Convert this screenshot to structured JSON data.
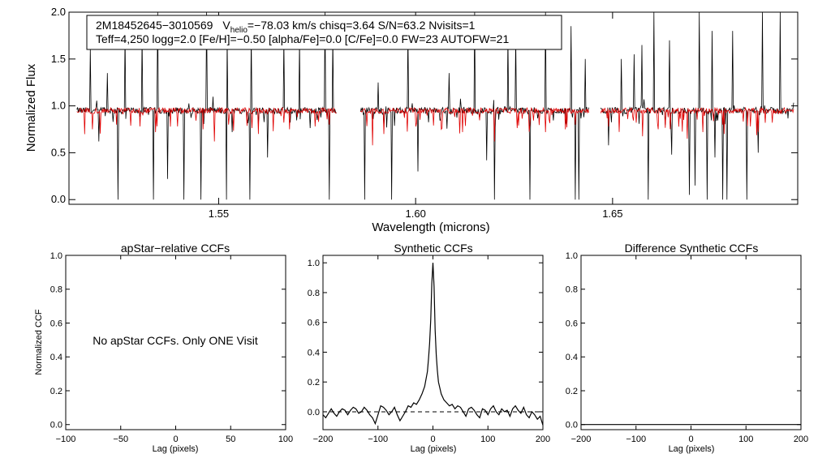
{
  "chart_data": [
    {
      "type": "line",
      "xlabel": "Wavelength (microns)",
      "ylabel": "Normalized Flux",
      "xlim": [
        1.512,
        1.697
      ],
      "ylim": [
        -0.05,
        2.0
      ],
      "xticks": [
        "1.55",
        "1.60",
        "1.65"
      ],
      "xtick_values": [
        1.55,
        1.6,
        1.65
      ],
      "yticks": [
        "0.0",
        "0.5",
        "1.0",
        "1.5",
        "2.0"
      ],
      "ytick_values": [
        0.0,
        0.5,
        1.0,
        1.5,
        2.0
      ],
      "info_line1_star": "2M18452645−3010569",
      "info_line1_v": "V",
      "info_line1_sub": "helio",
      "info_line1_rest": "=−78.03 km/s  chisq=3.64  S/N=63.2  Nvisits=1",
      "info_line2": "Teff=4,250 logg=2.0 [Fe/H]=−0.50 [alpha/Fe]=0.0 [C/Fe]=0.0 FW=23 AUTOFW=21",
      "detectors": [
        [
          1.514,
          1.58
        ],
        [
          1.586,
          1.644
        ],
        [
          1.647,
          1.696
        ]
      ],
      "series": [
        {
          "color": "#000000",
          "level": 0.95,
          "noise": 0.035,
          "spikes_up": [
            [
              1.5175,
              1.62
            ],
            [
              1.5218,
              1.35
            ],
            [
              1.5262,
              1.78
            ],
            [
              1.5305,
              1.75
            ],
            [
              1.5345,
              2.0
            ],
            [
              1.5412,
              1.75
            ],
            [
              1.547,
              2.0
            ],
            [
              1.5522,
              1.75
            ],
            [
              1.5582,
              1.75
            ],
            [
              1.5625,
              1.75
            ],
            [
              1.5665,
              1.72
            ],
            [
              1.5705,
              1.7
            ],
            [
              1.577,
              2.0
            ],
            [
              1.579,
              1.75
            ],
            [
              1.5905,
              1.25
            ],
            [
              1.598,
              1.8
            ],
            [
              1.6005,
              1.65
            ],
            [
              1.6085,
              1.35
            ],
            [
              1.615,
              2.0
            ],
            [
              1.6235,
              1.75
            ],
            [
              1.6255,
              1.75
            ],
            [
              1.633,
              2.0
            ],
            [
              1.6395,
              1.85
            ],
            [
              1.643,
              1.5
            ],
            [
              1.6522,
              1.5
            ],
            [
              1.6555,
              1.55
            ],
            [
              1.6575,
              1.65
            ],
            [
              1.6605,
              2.0
            ],
            [
              1.6645,
              1.7
            ],
            [
              1.672,
              2.0
            ],
            [
              1.6752,
              1.8
            ],
            [
              1.6805,
              1.8
            ],
            [
              1.684,
              1.75
            ],
            [
              1.688,
              2.0
            ],
            [
              1.6925,
              2.0
            ]
          ],
          "spikes_down": [
            [
              1.5195,
              0.62
            ],
            [
              1.5245,
              0.0
            ],
            [
              1.5335,
              0.0
            ],
            [
              1.537,
              0.22
            ],
            [
              1.5412,
              0.0
            ],
            [
              1.5455,
              0.0
            ],
            [
              1.552,
              0.0
            ],
            [
              1.5535,
              0.72
            ],
            [
              1.558,
              0.0
            ],
            [
              1.5625,
              0.45
            ],
            [
              1.578,
              0.0
            ],
            [
              1.587,
              0.0
            ],
            [
              1.594,
              0.0
            ],
            [
              1.6005,
              0.3
            ],
            [
              1.618,
              0.42
            ],
            [
              1.62,
              0.0
            ],
            [
              1.629,
              0.0
            ],
            [
              1.6405,
              0.0
            ],
            [
              1.6415,
              0.0
            ],
            [
              1.649,
              0.58
            ],
            [
              1.659,
              0.0
            ],
            [
              1.665,
              0.48
            ],
            [
              1.6695,
              0.05
            ],
            [
              1.671,
              0.15
            ],
            [
              1.674,
              0.0
            ],
            [
              1.676,
              0.45
            ],
            [
              1.678,
              0.0
            ],
            [
              1.679,
              0.0
            ],
            [
              1.684,
              0.0
            ],
            [
              1.687,
              0.5
            ]
          ]
        },
        {
          "color": "#e00000",
          "level": 0.95,
          "noise": 0.03,
          "spikes_up": [],
          "spikes_down": [
            [
              1.518,
              0.75
            ],
            [
              1.524,
              0.8
            ],
            [
              1.53,
              0.78
            ],
            [
              1.534,
              0.72
            ],
            [
              1.5395,
              0.78
            ],
            [
              1.546,
              0.75
            ],
            [
              1.549,
              0.62
            ],
            [
              1.5525,
              0.8
            ],
            [
              1.56,
              0.7
            ],
            [
              1.568,
              0.75
            ],
            [
              1.5745,
              0.78
            ],
            [
              1.578,
              0.8
            ],
            [
              1.589,
              0.58
            ],
            [
              1.592,
              0.7
            ],
            [
              1.6,
              0.78
            ],
            [
              1.6065,
              0.75
            ],
            [
              1.612,
              0.72
            ],
            [
              1.62,
              0.62
            ],
            [
              1.629,
              0.8
            ],
            [
              1.633,
              0.72
            ],
            [
              1.638,
              0.75
            ],
            [
              1.649,
              0.78
            ],
            [
              1.656,
              0.82
            ],
            [
              1.6615,
              0.75
            ],
            [
              1.669,
              0.65
            ],
            [
              1.673,
              0.72
            ],
            [
              1.678,
              0.8
            ],
            [
              1.685,
              0.78
            ],
            [
              1.6905,
              0.82
            ]
          ]
        }
      ]
    },
    {
      "type": "line",
      "title": "apStar−relative CCFs",
      "xlabel": "Lag (pixels)",
      "ylabel": "Normalized CCF",
      "xlim": [
        -100,
        100
      ],
      "ylim": [
        -0.03,
        1.0
      ],
      "xticks": [
        "−100",
        "−50",
        "0",
        "50",
        "100"
      ],
      "xtick_values": [
        -100,
        -50,
        0,
        50,
        100
      ],
      "yticks": [
        "0.0",
        "0.2",
        "0.4",
        "0.6",
        "0.8",
        "1.0"
      ],
      "ytick_values": [
        0.0,
        0.2,
        0.4,
        0.6,
        0.8,
        1.0
      ],
      "note": "No apStar CCFs.  Only ONE Visit",
      "series": []
    },
    {
      "type": "line",
      "title": "Synthetic CCFs",
      "xlabel": "Lag (pixels)",
      "xlim": [
        -200,
        200
      ],
      "ylim": [
        -0.12,
        1.05
      ],
      "xticks": [
        "−200",
        "−100",
        "0",
        "100",
        "200"
      ],
      "xtick_values": [
        -200,
        -100,
        0,
        100,
        200
      ],
      "yticks": [
        "0.0",
        "0.2",
        "0.4",
        "0.6",
        "0.8",
        "1.0"
      ],
      "ytick_values": [
        0.0,
        0.2,
        0.4,
        0.6,
        0.8,
        1.0
      ],
      "zero_line": true,
      "series": [
        {
          "color": "#000000",
          "x": [
            -200,
            -195,
            -190,
            -185,
            -180,
            -175,
            -170,
            -165,
            -160,
            -155,
            -150,
            -145,
            -140,
            -135,
            -130,
            -125,
            -120,
            -115,
            -110,
            -105,
            -100,
            -95,
            -90,
            -85,
            -80,
            -75,
            -70,
            -65,
            -60,
            -55,
            -50,
            -45,
            -40,
            -35,
            -30,
            -25,
            -20,
            -15,
            -10,
            -8,
            -6,
            -4,
            -2,
            0,
            2,
            4,
            6,
            8,
            10,
            15,
            20,
            25,
            30,
            35,
            40,
            45,
            50,
            55,
            60,
            65,
            70,
            75,
            80,
            85,
            90,
            95,
            100,
            105,
            110,
            115,
            120,
            125,
            130,
            135,
            140,
            145,
            150,
            155,
            160,
            165,
            170,
            175,
            180,
            185,
            190,
            195,
            200
          ],
          "y": [
            -0.02,
            -0.04,
            -0.01,
            0.02,
            -0.01,
            -0.03,
            0.0,
            0.02,
            0.01,
            -0.02,
            0.01,
            0.03,
            0.02,
            -0.01,
            0.0,
            0.03,
            0.01,
            -0.02,
            -0.04,
            -0.08,
            -0.02,
            0.04,
            0.03,
            0.01,
            -0.02,
            0.0,
            0.03,
            -0.02,
            -0.06,
            -0.03,
            0.0,
            0.04,
            0.03,
            0.06,
            0.05,
            0.08,
            0.12,
            0.17,
            0.27,
            0.36,
            0.46,
            0.62,
            0.86,
            1.0,
            0.84,
            0.55,
            0.38,
            0.28,
            0.2,
            0.12,
            0.08,
            0.06,
            0.04,
            0.05,
            0.02,
            0.04,
            0.03,
            0.0,
            -0.03,
            0.02,
            0.03,
            0.01,
            -0.02,
            -0.04,
            0.02,
            0.01,
            -0.02,
            0.02,
            0.04,
            0.0,
            -0.02,
            0.02,
            0.0,
            0.01,
            -0.03,
            0.02,
            0.04,
            0.01,
            -0.01,
            0.03,
            -0.02,
            -0.04,
            0.0,
            -0.02,
            -0.05,
            -0.03,
            -0.09
          ]
        }
      ]
    },
    {
      "type": "line",
      "title": "Difference Synthetic CCFs",
      "xlabel": "Lag (pixels)",
      "xlim": [
        -200,
        200
      ],
      "ylim": [
        -0.03,
        1.0
      ],
      "xticks": [
        "−200",
        "−100",
        "0",
        "100",
        "200"
      ],
      "xtick_values": [
        -200,
        -100,
        0,
        100,
        200
      ],
      "yticks": [
        "0.0",
        "0.2",
        "0.4",
        "0.6",
        "0.8",
        "1.0"
      ],
      "ytick_values": [
        0.0,
        0.2,
        0.4,
        0.6,
        0.8,
        1.0
      ],
      "series": [
        {
          "color": "#000000",
          "x": [
            -200,
            200
          ],
          "y": [
            0.0,
            0.0
          ]
        }
      ]
    }
  ]
}
